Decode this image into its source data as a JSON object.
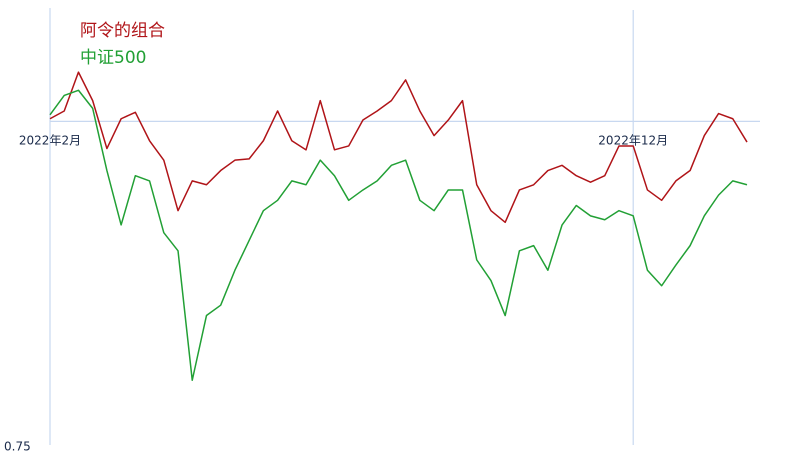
{
  "chart_data": {
    "type": "line",
    "categories": [
      "2022年2月",
      null,
      null,
      null,
      null,
      null,
      null,
      null,
      null,
      null,
      null,
      null,
      null,
      null,
      null,
      null,
      null,
      null,
      null,
      null,
      null,
      null,
      null,
      null,
      null,
      null,
      null,
      null,
      null,
      null,
      null,
      null,
      null,
      null,
      null,
      null,
      null,
      null,
      null,
      null,
      null,
      "2022年12月",
      null,
      null,
      null,
      null,
      null,
      null,
      null,
      null
    ],
    "series": [
      {
        "name": "阿令的组合",
        "color": "#b01418",
        "values": [
          1.002,
          1.008,
          1.038,
          1.016,
          0.979,
          1.002,
          1.007,
          0.985,
          0.97,
          0.931,
          0.954,
          0.951,
          0.962,
          0.97,
          0.971,
          0.985,
          1.008,
          0.985,
          0.978,
          1.016,
          0.978,
          0.981,
          1.001,
          1.008,
          1.016,
          1.032,
          1.008,
          0.989,
          1.001,
          1.016,
          0.951,
          0.931,
          0.922,
          0.947,
          0.951,
          0.962,
          0.966,
          0.958,
          0.953,
          0.958,
          0.981,
          0.981,
          0.947,
          0.939,
          0.954,
          0.962,
          0.989,
          1.006,
          1.002,
          0.984
        ]
      },
      {
        "name": "中证500",
        "color": "#22a035",
        "values": [
          1.005,
          1.02,
          1.024,
          1.01,
          0.962,
          0.92,
          0.958,
          0.954,
          0.914,
          0.9,
          0.8,
          0.85,
          0.858,
          0.885,
          0.908,
          0.931,
          0.939,
          0.954,
          0.951,
          0.97,
          0.958,
          0.939,
          0.947,
          0.954,
          0.966,
          0.97,
          0.939,
          0.931,
          0.947,
          0.947,
          0.893,
          0.877,
          0.85,
          0.9,
          0.904,
          0.885,
          0.92,
          0.935,
          0.927,
          0.924,
          0.931,
          0.927,
          0.885,
          0.873,
          0.889,
          0.904,
          0.927,
          0.943,
          0.954,
          0.951
        ]
      }
    ],
    "ylim": [
      0.75,
      1.086
    ],
    "yticks": [
      0.75
    ],
    "reference_line": 1
  }
}
